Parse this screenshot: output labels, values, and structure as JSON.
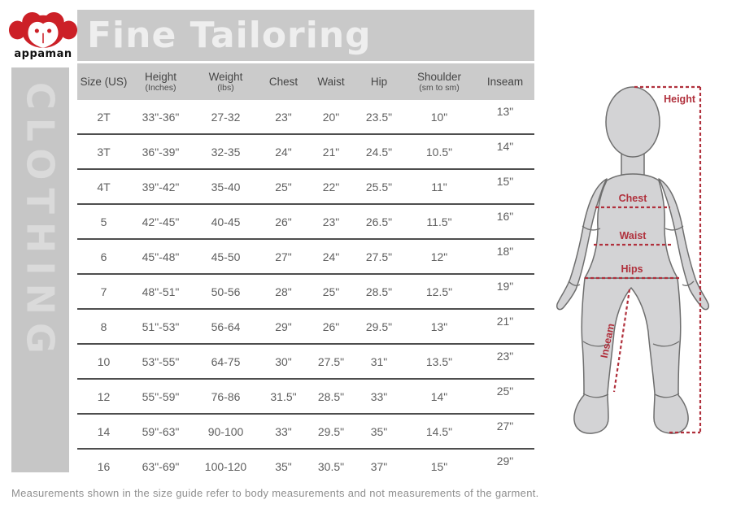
{
  "brand": {
    "name": "appaman"
  },
  "banner": {
    "title": "Fine Tailoring"
  },
  "side_band": {
    "label": "CLOTHING"
  },
  "size_table": {
    "columns": [
      {
        "label": "Size (US)",
        "sublabel": ""
      },
      {
        "label": "Height",
        "sublabel": "(Inches)"
      },
      {
        "label": "Weight",
        "sublabel": "(lbs)"
      },
      {
        "label": "Chest",
        "sublabel": ""
      },
      {
        "label": "Waist",
        "sublabel": ""
      },
      {
        "label": "Hip",
        "sublabel": ""
      },
      {
        "label": "Shoulder",
        "sublabel": "(sm to sm)"
      },
      {
        "label": "Inseam",
        "sublabel": ""
      }
    ],
    "rows": [
      [
        "2T",
        "33\"-36\"",
        "27-32",
        "23\"",
        "20\"",
        "23.5\"",
        "10\"",
        "13\""
      ],
      [
        "3T",
        "36\"-39\"",
        "32-35",
        "24\"",
        "21\"",
        "24.5\"",
        "10.5\"",
        "14\""
      ],
      [
        "4T",
        "39\"-42\"",
        "35-40",
        "25\"",
        "22\"",
        "25.5\"",
        "11\"",
        "15\""
      ],
      [
        "5",
        "42\"-45\"",
        "40-45",
        "26\"",
        "23\"",
        "26.5\"",
        "11.5\"",
        "16\""
      ],
      [
        "6",
        "45\"-48\"",
        "45-50",
        "27\"",
        "24\"",
        "27.5\"",
        "12\"",
        "18\""
      ],
      [
        "7",
        "48\"-51\"",
        "50-56",
        "28\"",
        "25\"",
        "28.5\"",
        "12.5\"",
        "19\""
      ],
      [
        "8",
        "51\"-53\"",
        "56-64",
        "29\"",
        "26\"",
        "29.5\"",
        "13\"",
        "21\""
      ],
      [
        "10",
        "53\"-55\"",
        "64-75",
        "30\"",
        "27.5\"",
        "31\"",
        "13.5\"",
        "23\""
      ],
      [
        "12",
        "55\"-59\"",
        "76-86",
        "31.5\"",
        "28.5\"",
        "33\"",
        "14\"",
        "25\""
      ],
      [
        "14",
        "59\"-63\"",
        "90-100",
        "33\"",
        "29.5\"",
        "35\"",
        "14.5\"",
        "27\""
      ],
      [
        "16",
        "63\"-69\"",
        "100-120",
        "35\"",
        "30.5\"",
        "37\"",
        "15\"",
        "29\""
      ]
    ]
  },
  "figure": {
    "labels": {
      "height": "Height",
      "chest": "Chest",
      "waist": "Waist",
      "hips": "Hips",
      "inseam": "Inseam"
    }
  },
  "footer": {
    "note": "Measurements shown in the size guide refer to body measurements and not measurements of the garment."
  },
  "colors": {
    "logo_red": "#cc2027",
    "measure_red": "#b0303c",
    "banner_gray": "#c9c9c9",
    "mannequin_fill": "#d3d3d5",
    "mannequin_stroke": "#6e6e6e",
    "table_line": "#4e4e4e",
    "table_text": "#5f5f5f"
  }
}
